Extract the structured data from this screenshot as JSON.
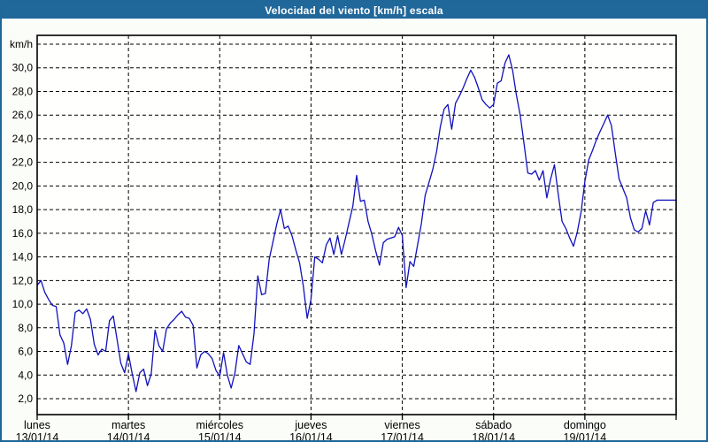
{
  "title": "Velocidad del viento [km/h] escala",
  "colors": {
    "titlebar_bg": "#20679a",
    "title_text": "#ffffff",
    "page_border": "#1e6798",
    "page_bg": "#fbfdf8",
    "plot_bg": "#fffffe",
    "grid": "#000000",
    "axis_text": "#000000",
    "line": "#1111bb"
  },
  "chart_data": {
    "type": "line",
    "title": "Velocidad del viento [km/h] escala",
    "ylabel": "km/h",
    "xlabel": "",
    "unit_label": "km/h",
    "x_unit": "hours from Monday 00:00 (hourly values, last point = Sunday 24:00)",
    "ylim": [
      2,
      32
    ],
    "ytick_step": 2,
    "grid": true,
    "legend": "none",
    "ytick_labels": [
      "km/h",
      "30,0",
      "28,0",
      "26,0",
      "24,0",
      "22,0",
      "20,0",
      "18,0",
      "16,0",
      "14,0",
      "12,0",
      "10,0",
      "8,0",
      "6,0",
      "4,0",
      "2,0"
    ],
    "days": [
      {
        "name": "lunes",
        "date": "13/01/14"
      },
      {
        "name": "martes",
        "date": "14/01/14"
      },
      {
        "name": "miércoles",
        "date": "15/01/14"
      },
      {
        "name": "jueves",
        "date": "16/01/14"
      },
      {
        "name": "viernes",
        "date": "17/01/14"
      },
      {
        "name": "sábado",
        "date": "18/01/14"
      },
      {
        "name": "domingo",
        "date": "19/01/14"
      }
    ],
    "series": [
      {
        "name": "Velocidad del viento",
        "color": "#1111bb",
        "values": [
          11.6,
          12.0,
          11.0,
          10.4,
          9.9,
          9.8,
          7.4,
          6.7,
          4.9,
          6.5,
          9.3,
          9.5,
          9.2,
          9.6,
          8.7,
          6.6,
          5.7,
          6.2,
          6.0,
          8.6,
          9.0,
          7.0,
          5.0,
          4.2,
          5.8,
          4.1,
          2.6,
          4.2,
          4.5,
          3.1,
          4.1,
          7.8,
          6.5,
          6.0,
          7.9,
          8.4,
          8.7,
          9.1,
          9.4,
          8.9,
          8.8,
          8.2,
          4.6,
          5.7,
          6.0,
          5.8,
          5.4,
          4.4,
          3.9,
          5.9,
          4.0,
          2.9,
          4.2,
          6.5,
          5.8,
          5.1,
          4.9,
          7.5,
          12.4,
          10.8,
          10.9,
          13.8,
          15.3,
          16.8,
          18.0,
          16.4,
          16.6,
          15.8,
          14.6,
          13.5,
          11.5,
          8.8,
          10.4,
          14.0,
          13.8,
          13.5,
          15.0,
          15.6,
          14.2,
          15.8,
          14.2,
          15.5,
          16.9,
          18.3,
          20.9,
          18.7,
          18.8,
          17.0,
          15.9,
          14.5,
          13.3,
          15.2,
          15.5,
          15.6,
          15.7,
          16.5,
          15.8,
          11.4,
          13.6,
          13.2,
          15.0,
          16.8,
          19.2,
          20.3,
          21.4,
          22.9,
          25.0,
          26.5,
          26.9,
          24.8,
          27.0,
          27.6,
          28.3,
          29.1,
          29.8,
          29.2,
          28.3,
          27.3,
          26.9,
          26.6,
          26.9,
          28.7,
          28.9,
          30.4,
          31.1,
          29.8,
          27.7,
          26.0,
          23.6,
          21.1,
          21.0,
          21.3,
          20.5,
          21.3,
          19.0,
          20.6,
          21.8,
          19.3,
          17.0,
          16.4,
          15.6,
          14.9,
          16.1,
          17.8,
          20.4,
          22.2,
          23.0,
          23.9,
          24.6,
          25.3,
          26.0,
          25.1,
          22.8,
          20.6,
          19.8,
          19.0,
          17.3,
          16.3,
          16.1,
          16.4,
          17.9,
          16.7,
          18.6,
          18.8,
          18.8,
          18.8,
          18.8,
          18.8,
          18.8
        ]
      }
    ]
  }
}
